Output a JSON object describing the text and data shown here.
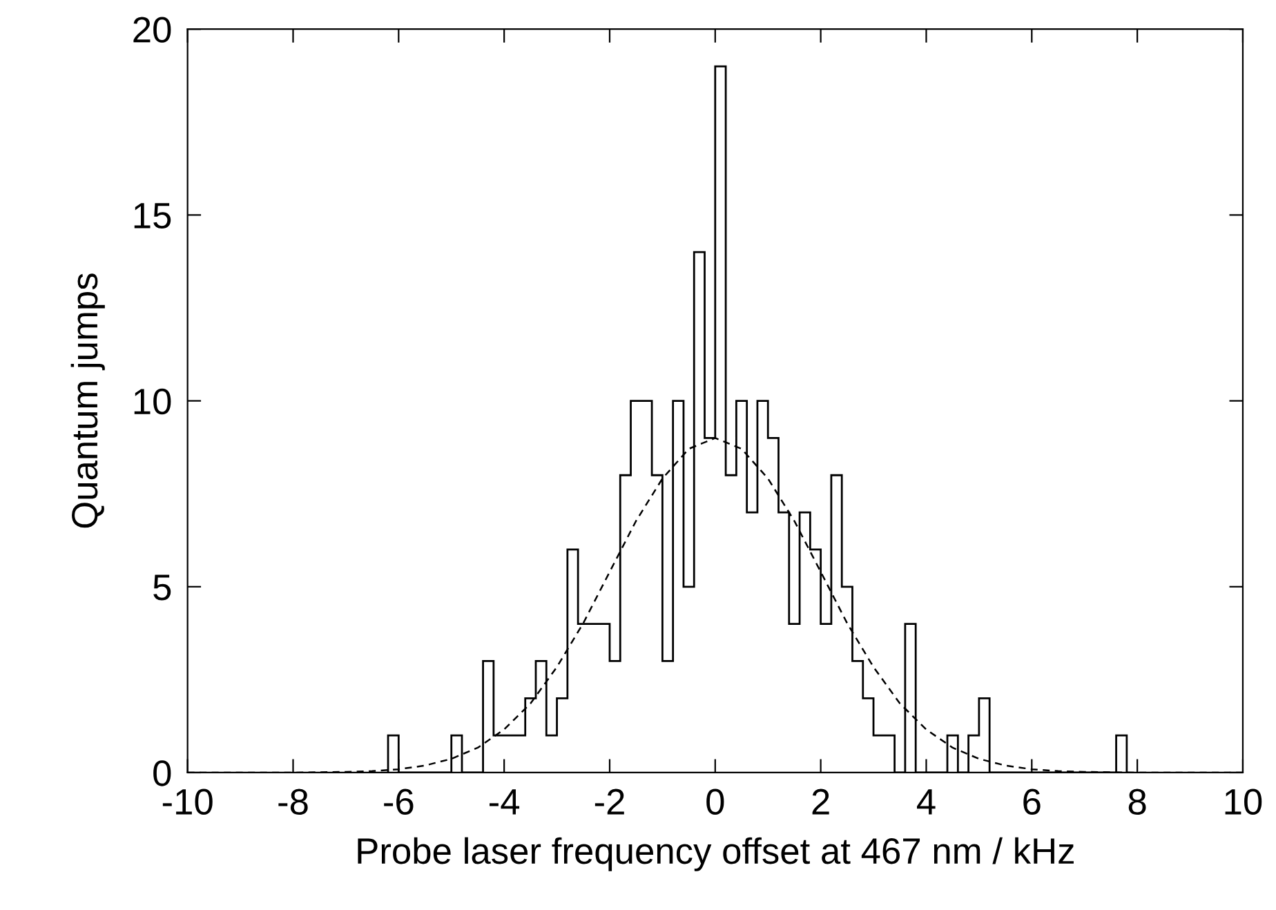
{
  "chart_data": {
    "type": "histogram",
    "xlabel": "Probe laser frequency offset at 467 nm / kHz",
    "ylabel": "Quantum jumps",
    "xlim": [
      -10,
      10
    ],
    "xticks": [
      -10,
      -8,
      -6,
      -4,
      -2,
      0,
      2,
      4,
      6,
      8,
      10
    ],
    "ylim": [
      0,
      20
    ],
    "yticks": [
      0,
      5,
      10,
      15,
      20
    ],
    "grid": false,
    "legend": false,
    "series": [
      {
        "color": "#000000",
        "bins": [
          -6.2,
          -6.0,
          -5.8,
          -5.6,
          -5.4,
          -5.2,
          -5.0,
          -4.8,
          -4.6,
          -4.4,
          -4.2,
          -4.0,
          -3.8,
          -3.6,
          -3.4,
          -3.2,
          -3.0,
          -2.8,
          -2.6,
          -2.4,
          -2.2,
          -2.0,
          -1.8,
          -1.6,
          -1.4,
          -1.2,
          -1.0,
          -0.8,
          -0.6,
          -0.4,
          -0.2,
          0.0,
          0.2,
          0.4,
          0.6,
          0.8,
          1.0,
          1.2,
          1.4,
          1.6,
          1.8,
          2.0,
          2.2,
          2.4,
          2.6,
          2.8,
          3.0,
          3.2,
          3.4,
          3.6,
          3.8,
          4.0,
          4.2,
          4.4,
          4.6,
          4.8,
          5.0,
          5.2,
          5.4,
          5.6,
          5.8,
          6.0,
          6.2,
          6.4,
          6.6,
          6.8,
          7.0,
          7.2,
          7.4,
          7.6,
          7.8
        ],
        "values": [
          1,
          0,
          0,
          0,
          0,
          0,
          1,
          0,
          0,
          3,
          1,
          1,
          1,
          2,
          3,
          1,
          2,
          6,
          4,
          4,
          4,
          3,
          8,
          10,
          10,
          8,
          3,
          10,
          5,
          14,
          9,
          19,
          8,
          10,
          7,
          10,
          9,
          7,
          4,
          7,
          6,
          4,
          8,
          5,
          3,
          2,
          1,
          1,
          0,
          4,
          0,
          0,
          0,
          1,
          0,
          1,
          2,
          0,
          0,
          0,
          0,
          0,
          0,
          0,
          0,
          0,
          0,
          0,
          0,
          1
        ]
      },
      {
        "type": "line",
        "color": "#000000",
        "line_style": "dashed",
        "marker": "none",
        "x": [
          -10,
          -9,
          -8,
          -7,
          -6.5,
          -6,
          -5.5,
          -5,
          -4.5,
          -4,
          -3.5,
          -3,
          -2.5,
          -2,
          -1.5,
          -1,
          -0.5,
          0,
          0.5,
          1,
          1.5,
          2,
          2.5,
          3,
          3.5,
          4,
          4.5,
          5,
          5.5,
          6,
          6.5,
          7,
          8,
          9,
          10
        ],
        "values": [
          0,
          0,
          0,
          0.02,
          0.04,
          0.09,
          0.19,
          0.37,
          0.67,
          1.16,
          1.86,
          2.84,
          4.02,
          5.4,
          6.77,
          7.91,
          8.71,
          9,
          8.71,
          7.91,
          6.77,
          5.4,
          4.02,
          2.84,
          1.86,
          1.16,
          0.67,
          0.37,
          0.19,
          0.09,
          0.04,
          0.02,
          0,
          0,
          0
        ]
      }
    ]
  }
}
